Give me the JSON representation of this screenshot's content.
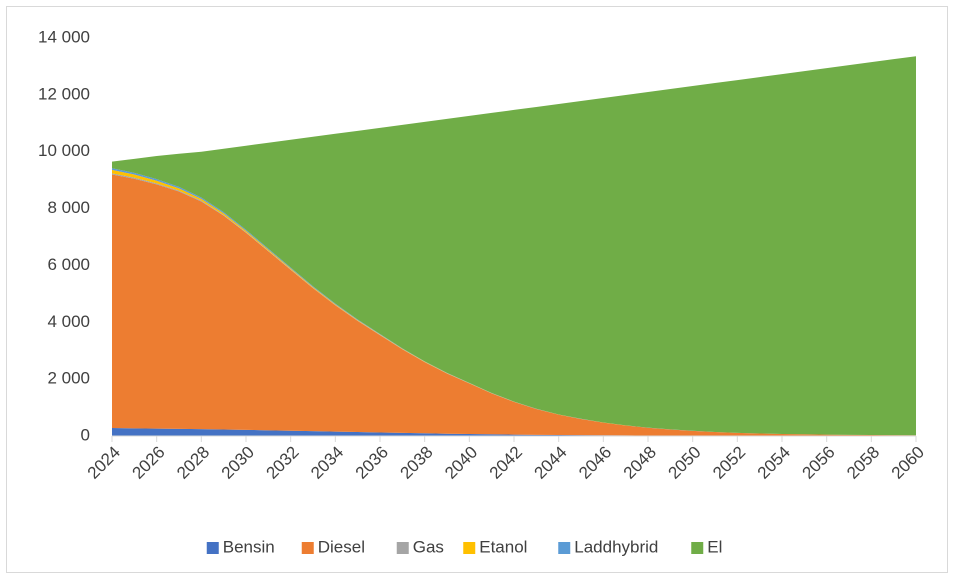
{
  "chart_data": {
    "type": "area",
    "stacked": true,
    "x": [
      2024,
      2025,
      2026,
      2027,
      2028,
      2029,
      2030,
      2031,
      2032,
      2033,
      2034,
      2035,
      2036,
      2037,
      2038,
      2039,
      2040,
      2041,
      2042,
      2043,
      2044,
      2045,
      2046,
      2047,
      2048,
      2049,
      2050,
      2051,
      2052,
      2053,
      2054,
      2055,
      2056,
      2057,
      2058,
      2059,
      2060
    ],
    "xlim": [
      2024,
      2060
    ],
    "xticks": [
      2024,
      2026,
      2028,
      2030,
      2032,
      2034,
      2036,
      2038,
      2040,
      2042,
      2044,
      2046,
      2048,
      2050,
      2052,
      2054,
      2056,
      2058,
      2060
    ],
    "ylim": [
      0,
      14000
    ],
    "yticks": [
      0,
      {
        "value": 2000,
        "label": "2 000"
      },
      {
        "value": 4000,
        "label": "4 000"
      },
      {
        "value": 6000,
        "label": "6 000"
      },
      {
        "value": 8000,
        "label": "8 000"
      },
      {
        "value": 10000,
        "label": "10 000"
      },
      {
        "value": 12000,
        "label": "12 000"
      },
      {
        "value": 14000,
        "label": "14 000"
      }
    ],
    "grid": false,
    "legend": "bottom",
    "series": [
      {
        "name": "Bensin",
        "color": "#4472c4",
        "values": [
          280,
          270,
          260,
          250,
          240,
          230,
          215,
          200,
          185,
          170,
          155,
          140,
          125,
          110,
          95,
          80,
          70,
          60,
          50,
          40,
          35,
          30,
          25,
          20,
          15,
          12,
          10,
          8,
          6,
          5,
          4,
          3,
          3,
          2,
          2,
          1,
          1
        ]
      },
      {
        "name": "Diesel",
        "color": "#ed7d31",
        "values": [
          8920,
          8780,
          8590,
          8350,
          8010,
          7520,
          6935,
          6300,
          5665,
          5030,
          4445,
          3910,
          3425,
          2940,
          2505,
          2120,
          1780,
          1440,
          1150,
          910,
          715,
          570,
          445,
          350,
          275,
          218,
          170,
          132,
          104,
          85,
          66,
          57,
          47,
          38,
          33,
          29,
          24
        ]
      },
      {
        "name": "Gas",
        "color": "#a5a5a5",
        "values": [
          40,
          38,
          35,
          32,
          28,
          24,
          20,
          17,
          14,
          12,
          10,
          8,
          7,
          6,
          5,
          4,
          3,
          3,
          2,
          2,
          2,
          1,
          1,
          1,
          1,
          1,
          1,
          0,
          0,
          0,
          0,
          0,
          0,
          0,
          0,
          0,
          0
        ]
      },
      {
        "name": "Etanol",
        "color": "#ffc000",
        "values": [
          120,
          110,
          95,
          80,
          65,
          55,
          45,
          38,
          32,
          27,
          22,
          18,
          15,
          12,
          10,
          8,
          6,
          5,
          4,
          3,
          3,
          2,
          2,
          1,
          1,
          1,
          1,
          1,
          0,
          0,
          0,
          0,
          0,
          0,
          0,
          0,
          0
        ]
      },
      {
        "name": "Laddhybrid",
        "color": "#5b9bd5",
        "values": [
          60,
          58,
          55,
          52,
          48,
          44,
          40,
          36,
          32,
          28,
          24,
          20,
          17,
          14,
          12,
          10,
          8,
          6,
          5,
          4,
          3,
          3,
          2,
          2,
          1,
          1,
          1,
          1,
          1,
          0,
          0,
          0,
          0,
          0,
          0,
          0,
          0
        ]
      },
      {
        "name": "El",
        "color": "#70ad47",
        "values": [
          230,
          494,
          815,
          1166,
          1609,
          2232,
          2955,
          3724,
          4492,
          5258,
          5974,
          6639,
          7251,
          7863,
          8423,
          8933,
          9393,
          9851,
          10259,
          10616,
          10922,
          11179,
          11415,
          11621,
          11807,
          11972,
          12127,
          12273,
          12409,
          12535,
          12660,
          12775,
          12890,
          13005,
          13115,
          13225,
          13335
        ]
      }
    ]
  }
}
